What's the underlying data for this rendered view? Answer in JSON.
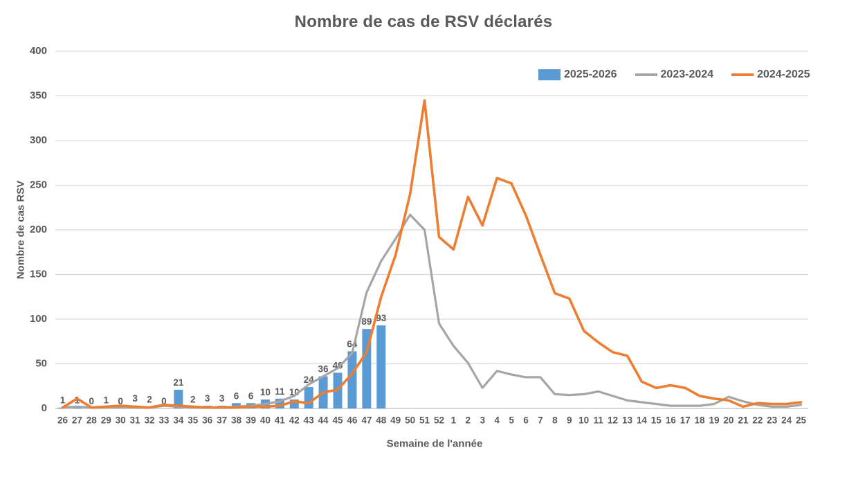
{
  "title": "Nombre de cas de RSV déclarés",
  "axes": {
    "y_label": "Nombre de cas RSV",
    "x_label": "Semaine de l'année"
  },
  "palette": {
    "text": "#595959",
    "gridline": "#d9d9d9",
    "axis_line": "#bfbfbf",
    "background": "#ffffff",
    "bar_blue": "#5b9bd5",
    "line_gray": "#a5a5a5",
    "line_orange": "#ed7d31"
  },
  "chart_data": {
    "type": "bar",
    "subtype": "bar-and-lines-combo",
    "title": "Nombre de cas de RSV déclarés",
    "xlabel": "Semaine de l'année",
    "ylabel": "Nombre de cas RSV",
    "ylim": [
      0,
      400
    ],
    "ytick_step": 50,
    "grid": true,
    "legend_position": "top-right-inside",
    "categories": [
      26,
      27,
      28,
      29,
      30,
      31,
      32,
      33,
      34,
      35,
      36,
      37,
      38,
      39,
      40,
      41,
      42,
      43,
      44,
      45,
      46,
      47,
      48,
      49,
      50,
      51,
      52,
      1,
      2,
      3,
      4,
      5,
      6,
      7,
      8,
      9,
      10,
      11,
      12,
      13,
      14,
      15,
      16,
      17,
      18,
      19,
      20,
      21,
      22,
      23,
      24,
      25
    ],
    "series": [
      {
        "name": "2025-2026",
        "type": "bar",
        "color": "#5b9bd5",
        "data_labels": true,
        "values": [
          1,
          1,
          0,
          1,
          0,
          3,
          2,
          0,
          21,
          2,
          3,
          3,
          6,
          6,
          10,
          11,
          10,
          24,
          36,
          40,
          64,
          89,
          93,
          null,
          null,
          null,
          null,
          null,
          null,
          null,
          null,
          null,
          null,
          null,
          null,
          null,
          null,
          null,
          null,
          null,
          null,
          null,
          null,
          null,
          null,
          null,
          null,
          null,
          null,
          null,
          null,
          null
        ]
      },
      {
        "name": "2023-2024",
        "type": "line",
        "color": "#a5a5a5",
        "data_labels": false,
        "values": [
          1,
          2,
          1,
          1,
          1,
          1,
          1,
          3,
          2,
          1,
          1,
          1,
          2,
          3,
          5,
          8,
          14,
          27,
          36,
          45,
          62,
          130,
          165,
          190,
          217,
          200,
          95,
          70,
          51,
          23,
          42,
          38,
          35,
          35,
          16,
          15,
          16,
          19,
          14,
          9,
          7,
          5,
          3,
          3,
          3,
          5,
          13,
          8,
          4,
          2,
          2,
          4
        ]
      },
      {
        "name": "2024-2025",
        "type": "line",
        "color": "#ed7d31",
        "data_labels": false,
        "values": [
          1,
          11,
          1,
          2,
          3,
          2,
          1,
          4,
          3,
          2,
          1,
          1,
          1,
          2,
          2,
          3,
          8,
          6,
          18,
          21,
          39,
          63,
          125,
          172,
          240,
          345,
          192,
          178,
          237,
          205,
          258,
          252,
          216,
          172,
          129,
          123,
          87,
          74,
          63,
          59,
          30,
          23,
          26,
          23,
          14,
          11,
          9,
          2,
          6,
          5,
          5,
          7
        ]
      }
    ],
    "ytick_labels": [
      0,
      50,
      100,
      150,
      200,
      250,
      300,
      350,
      400
    ]
  }
}
